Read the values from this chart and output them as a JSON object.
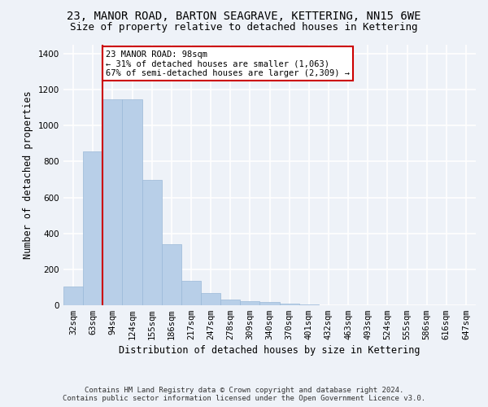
{
  "title": "23, MANOR ROAD, BARTON SEAGRAVE, KETTERING, NN15 6WE",
  "subtitle": "Size of property relative to detached houses in Kettering",
  "xlabel": "Distribution of detached houses by size in Kettering",
  "ylabel": "Number of detached properties",
  "footer_line1": "Contains HM Land Registry data © Crown copyright and database right 2024.",
  "footer_line2": "Contains public sector information licensed under the Open Government Licence v3.0.",
  "annotation_line1": "23 MANOR ROAD: 98sqm",
  "annotation_line2": "← 31% of detached houses are smaller (1,063)",
  "annotation_line3": "67% of semi-detached houses are larger (2,309) →",
  "red_line_bar_index": 2,
  "categories": [
    "32sqm",
    "63sqm",
    "94sqm",
    "124sqm",
    "155sqm",
    "186sqm",
    "217sqm",
    "247sqm",
    "278sqm",
    "309sqm",
    "340sqm",
    "370sqm",
    "401sqm",
    "432sqm",
    "463sqm",
    "493sqm",
    "524sqm",
    "555sqm",
    "586sqm",
    "616sqm",
    "647sqm"
  ],
  "values": [
    105,
    855,
    1145,
    1145,
    700,
    340,
    135,
    70,
    32,
    22,
    17,
    10,
    5,
    0,
    0,
    0,
    0,
    0,
    0,
    0,
    0
  ],
  "bar_color": "#b8cfe8",
  "bar_edge_color": "#9ab8d8",
  "red_line_color": "#cc0000",
  "background_color": "#eef2f8",
  "grid_color": "#ffffff",
  "annotation_box_color": "#ffffff",
  "annotation_box_edge": "#cc0000",
  "ylim": [
    0,
    1450
  ],
  "yticks": [
    0,
    200,
    400,
    600,
    800,
    1000,
    1200,
    1400
  ],
  "title_fontsize": 10,
  "subtitle_fontsize": 9,
  "axis_label_fontsize": 8.5,
  "tick_fontsize": 7.5,
  "annotation_fontsize": 7.5,
  "footer_fontsize": 6.5
}
